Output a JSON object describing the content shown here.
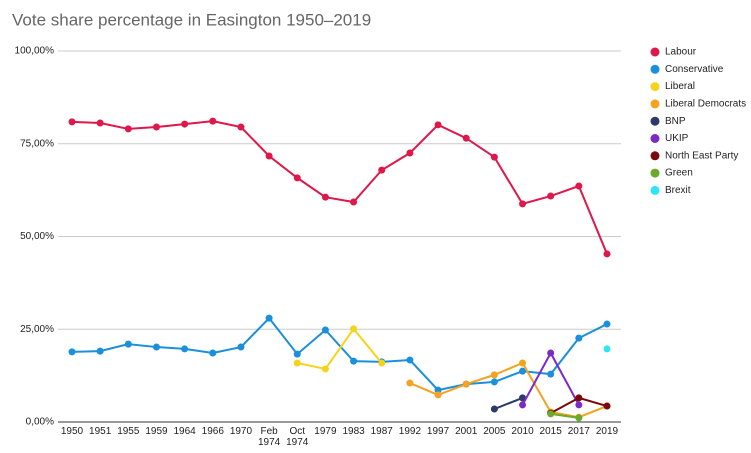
{
  "chart_data": {
    "type": "line",
    "title": "Vote share percentage in Easington 1950–2019",
    "categories": [
      "1950",
      "1951",
      "1955",
      "1959",
      "1964",
      "1966",
      "1970",
      "Feb 1974",
      "Oct 1974",
      "1979",
      "1983",
      "1987",
      "1992",
      "1997",
      "2001",
      "2005",
      "2010",
      "2015",
      "2017",
      "2019"
    ],
    "ylim": [
      0,
      100
    ],
    "yticks": [
      {
        "value": 0,
        "label": "0,00%"
      },
      {
        "value": 25,
        "label": "25,00%"
      },
      {
        "value": 50,
        "label": "50,00%"
      },
      {
        "value": 75,
        "label": "75,00%"
      },
      {
        "value": 100,
        "label": "100,00%"
      }
    ],
    "grid": true,
    "legend": "right",
    "series": [
      {
        "name": "Labour",
        "color": "#e0174a",
        "values": [
          80.9,
          80.6,
          79.0,
          79.5,
          80.3,
          81.1,
          79.5,
          71.7,
          65.8,
          60.6,
          59.3,
          67.9,
          72.5,
          80.1,
          76.5,
          71.4,
          58.8,
          60.9,
          63.6,
          45.3
        ]
      },
      {
        "name": "Conservative",
        "color": "#1a8fdc",
        "values": [
          18.9,
          19.1,
          21.0,
          20.2,
          19.7,
          18.6,
          20.2,
          28.0,
          18.3,
          24.8,
          16.4,
          16.2,
          16.7,
          8.6,
          10.2,
          10.8,
          13.7,
          12.9,
          22.6,
          26.4
        ]
      },
      {
        "name": "Liberal",
        "color": "#f5d31a",
        "values": [
          null,
          null,
          null,
          null,
          null,
          null,
          null,
          null,
          15.9,
          14.3,
          25.1,
          15.9,
          null,
          null,
          null,
          null,
          null,
          null,
          null,
          null
        ]
      },
      {
        "name": "Liberal Democrats",
        "color": "#f4a21f",
        "values": [
          null,
          null,
          null,
          null,
          null,
          null,
          null,
          null,
          null,
          null,
          null,
          null,
          10.5,
          7.3,
          10.2,
          12.7,
          15.9,
          2.7,
          1.3,
          4.3
        ]
      },
      {
        "name": "BNP",
        "color": "#2b3a6b",
        "values": [
          null,
          null,
          null,
          null,
          null,
          null,
          null,
          null,
          null,
          null,
          null,
          null,
          null,
          null,
          null,
          3.5,
          6.5,
          null,
          null,
          null
        ]
      },
      {
        "name": "UKIP",
        "color": "#7b2ac8",
        "values": [
          null,
          null,
          null,
          null,
          null,
          null,
          null,
          null,
          null,
          null,
          null,
          null,
          null,
          null,
          null,
          null,
          4.6,
          18.6,
          4.6,
          null
        ]
      },
      {
        "name": "North East Party",
        "color": "#7a0a0a",
        "values": [
          null,
          null,
          null,
          null,
          null,
          null,
          null,
          null,
          null,
          null,
          null,
          null,
          null,
          null,
          null,
          null,
          null,
          2.4,
          6.5,
          4.3
        ]
      },
      {
        "name": "Green",
        "color": "#6aaa2a",
        "values": [
          null,
          null,
          null,
          null,
          null,
          null,
          null,
          null,
          null,
          null,
          null,
          null,
          null,
          null,
          null,
          null,
          null,
          2.2,
          1.1,
          null
        ]
      },
      {
        "name": "Brexit",
        "color": "#2ee6f2",
        "values": [
          null,
          null,
          null,
          null,
          null,
          null,
          null,
          null,
          null,
          null,
          null,
          null,
          null,
          null,
          null,
          null,
          null,
          null,
          null,
          19.7
        ]
      }
    ]
  }
}
